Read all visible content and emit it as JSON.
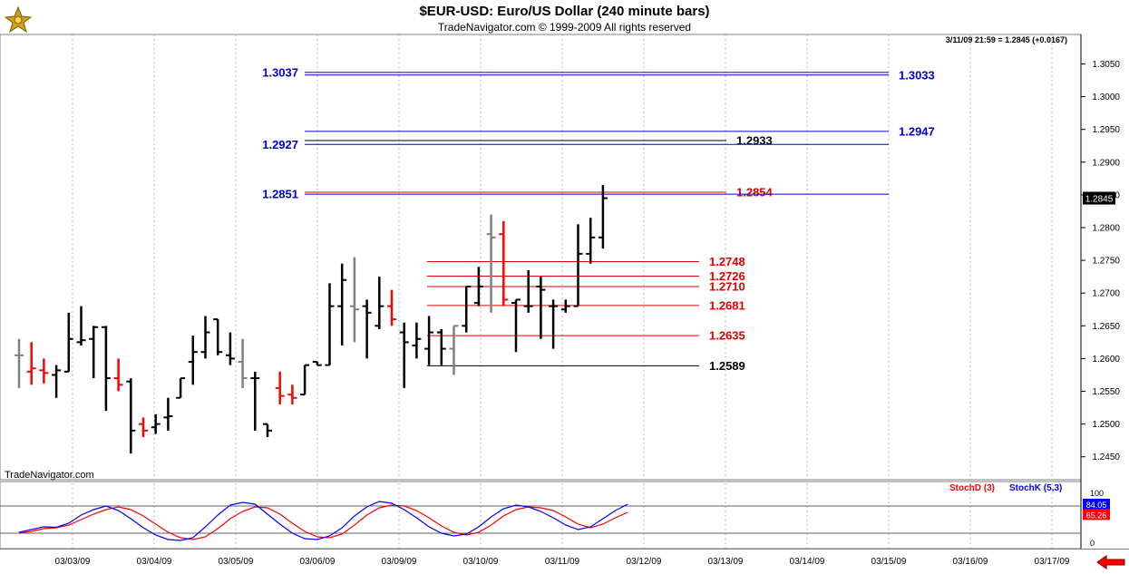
{
  "header": {
    "title": "$EUR-USD:  Euro/US Dollar  (240 minute bars)",
    "copyright": "TradeNavigator.com © 1999-2009 All rights reserved",
    "quote": "3/11/09 21:59 = 1.2845 (+0.0167)"
  },
  "watermark": "TradeNavigator.com",
  "colors": {
    "up_bar": "#000000",
    "down_bar": "#ff0000",
    "neutral_bar": "#808080",
    "stoch_d": "#ff0000",
    "stoch_k": "#0000ff",
    "fib_blue": "#0000cc",
    "support_red": "#e00000"
  },
  "chart_data": [
    {
      "type": "ohlc-bar",
      "title": "$EUR-USD:  Euro/US Dollar  (240 minute bars)",
      "ylim": [
        1.2415,
        1.3095
      ],
      "yticks": [
        1.245,
        1.25,
        1.255,
        1.26,
        1.265,
        1.27,
        1.275,
        1.28,
        1.285,
        1.29,
        1.295,
        1.3,
        1.305
      ],
      "ytick_labels": [
        "1.2450",
        "1.2500",
        "1.2550",
        "1.2600",
        "1.2650",
        "1.2700",
        "1.2750",
        "1.2800",
        "1.2850",
        "1.2900",
        "1.2950",
        "1.3000",
        "1.3050"
      ],
      "xlabels": [
        "03/03/09",
        "03/04/09",
        "03/05/09",
        "03/06/09",
        "03/09/09",
        "03/10/09",
        "03/11/09",
        "03/12/09",
        "03/13/09",
        "03/14/09",
        "03/15/09",
        "03/16/09",
        "03/17/09"
      ],
      "last_price_label": "1.2845",
      "bars": [
        {
          "o": 1.2605,
          "h": 1.263,
          "l": 1.2555,
          "c": 1.2605,
          "col": "gray"
        },
        {
          "o": 1.258,
          "h": 1.2625,
          "l": 1.256,
          "c": 1.2585,
          "col": "red"
        },
        {
          "o": 1.2582,
          "h": 1.26,
          "l": 1.2562,
          "c": 1.2578,
          "col": "red"
        },
        {
          "o": 1.2575,
          "h": 1.259,
          "l": 1.254,
          "c": 1.2582,
          "col": "black"
        },
        {
          "o": 1.258,
          "h": 1.267,
          "l": 1.258,
          "c": 1.263,
          "col": "black"
        },
        {
          "o": 1.2625,
          "h": 1.268,
          "l": 1.262,
          "c": 1.2628,
          "col": "black"
        },
        {
          "o": 1.263,
          "h": 1.265,
          "l": 1.257,
          "c": 1.2648,
          "col": "black"
        },
        {
          "o": 1.2648,
          "h": 1.265,
          "l": 1.252,
          "c": 1.257,
          "col": "black"
        },
        {
          "o": 1.257,
          "h": 1.26,
          "l": 1.255,
          "c": 1.256,
          "col": "red"
        },
        {
          "o": 1.2565,
          "h": 1.257,
          "l": 1.2455,
          "c": 1.249,
          "col": "black"
        },
        {
          "o": 1.25,
          "h": 1.251,
          "l": 1.248,
          "c": 1.249,
          "col": "red"
        },
        {
          "o": 1.2495,
          "h": 1.2515,
          "l": 1.2485,
          "c": 1.25,
          "col": "black"
        },
        {
          "o": 1.251,
          "h": 1.254,
          "l": 1.249,
          "c": 1.2512,
          "col": "black"
        },
        {
          "o": 1.254,
          "h": 1.257,
          "l": 1.254,
          "c": 1.257,
          "col": "black"
        },
        {
          "o": 1.2595,
          "h": 1.2635,
          "l": 1.256,
          "c": 1.261,
          "col": "black"
        },
        {
          "o": 1.261,
          "h": 1.2665,
          "l": 1.26,
          "c": 1.264,
          "col": "black"
        },
        {
          "o": 1.266,
          "h": 1.266,
          "l": 1.2605,
          "c": 1.261,
          "col": "black"
        },
        {
          "o": 1.2605,
          "h": 1.264,
          "l": 1.259,
          "c": 1.26,
          "col": "black"
        },
        {
          "o": 1.2595,
          "h": 1.263,
          "l": 1.2555,
          "c": 1.257,
          "col": "gray"
        },
        {
          "o": 1.257,
          "h": 1.258,
          "l": 1.249,
          "c": 1.257,
          "col": "black"
        },
        {
          "o": 1.25,
          "h": 1.25,
          "l": 1.248,
          "c": 1.249,
          "col": "black"
        },
        {
          "o": 1.2555,
          "h": 1.258,
          "l": 1.253,
          "c": 1.2543,
          "col": "red"
        },
        {
          "o": 1.2545,
          "h": 1.256,
          "l": 1.253,
          "c": 1.254,
          "col": "red"
        },
        {
          "o": 1.2545,
          "h": 1.259,
          "l": 1.2545,
          "c": 1.259,
          "col": "black"
        },
        {
          "o": 1.2595,
          "h": 1.2595,
          "l": 1.259,
          "c": 1.259,
          "col": "black"
        },
        {
          "o": 1.259,
          "h": 1.2715,
          "l": 1.259,
          "c": 1.268,
          "col": "black"
        },
        {
          "o": 1.268,
          "h": 1.2745,
          "l": 1.262,
          "c": 1.272,
          "col": "black"
        },
        {
          "o": 1.268,
          "h": 1.2755,
          "l": 1.2625,
          "c": 1.2675,
          "col": "gray"
        },
        {
          "o": 1.268,
          "h": 1.269,
          "l": 1.26,
          "c": 1.267,
          "col": "black"
        },
        {
          "o": 1.265,
          "h": 1.2725,
          "l": 1.2645,
          "c": 1.268,
          "col": "black"
        },
        {
          "o": 1.268,
          "h": 1.2705,
          "l": 1.265,
          "c": 1.266,
          "col": "red"
        },
        {
          "o": 1.264,
          "h": 1.2655,
          "l": 1.2555,
          "c": 1.2625,
          "col": "black"
        },
        {
          "o": 1.262,
          "h": 1.2655,
          "l": 1.26,
          "c": 1.263,
          "col": "black"
        },
        {
          "o": 1.2615,
          "h": 1.2665,
          "l": 1.259,
          "c": 1.264,
          "col": "black"
        },
        {
          "o": 1.264,
          "h": 1.2645,
          "l": 1.259,
          "c": 1.2615,
          "col": "black"
        },
        {
          "o": 1.2615,
          "h": 1.265,
          "l": 1.2575,
          "c": 1.265,
          "col": "gray"
        },
        {
          "o": 1.265,
          "h": 1.271,
          "l": 1.264,
          "c": 1.271,
          "col": "black"
        },
        {
          "o": 1.2685,
          "h": 1.274,
          "l": 1.268,
          "c": 1.271,
          "col": "black"
        },
        {
          "o": 1.279,
          "h": 1.282,
          "l": 1.267,
          "c": 1.2785,
          "col": "gray"
        },
        {
          "o": 1.279,
          "h": 1.281,
          "l": 1.268,
          "c": 1.269,
          "col": "red"
        },
        {
          "o": 1.2685,
          "h": 1.269,
          "l": 1.261,
          "c": 1.269,
          "col": "black"
        },
        {
          "o": 1.268,
          "h": 1.2735,
          "l": 1.267,
          "c": 1.268,
          "col": "black"
        },
        {
          "o": 1.271,
          "h": 1.2725,
          "l": 1.263,
          "c": 1.2705,
          "col": "black"
        },
        {
          "o": 1.268,
          "h": 1.269,
          "l": 1.2615,
          "c": 1.268,
          "col": "black"
        },
        {
          "o": 1.2675,
          "h": 1.269,
          "l": 1.267,
          "c": 1.268,
          "col": "black"
        },
        {
          "o": 1.268,
          "h": 1.2805,
          "l": 1.268,
          "c": 1.276,
          "col": "black"
        },
        {
          "o": 1.276,
          "h": 1.2815,
          "l": 1.2745,
          "c": 1.2785,
          "col": "black"
        },
        {
          "o": 1.2785,
          "h": 1.2865,
          "l": 1.2768,
          "c": 1.2845,
          "col": "black"
        }
      ],
      "levels": [
        {
          "value": 1.3037,
          "label": "1.3037",
          "side": "left",
          "color": "blue"
        },
        {
          "value": 1.3033,
          "label": "1.3033",
          "side": "right",
          "color": "blue"
        },
        {
          "value": 1.2947,
          "label": "1.2947",
          "side": "right",
          "color": "blue"
        },
        {
          "value": 1.2933,
          "label": "1.2933",
          "side": "right",
          "color": "black"
        },
        {
          "value": 1.2927,
          "label": "1.2927",
          "side": "left",
          "color": "blue"
        },
        {
          "value": 1.2854,
          "label": "1.2854",
          "side": "right",
          "color": "red"
        },
        {
          "value": 1.2851,
          "label": "1.2851",
          "side": "left",
          "color": "blue"
        },
        {
          "value": 1.2748,
          "label": "1.2748",
          "side": "right",
          "color": "red"
        },
        {
          "value": 1.2726,
          "label": "1.2726",
          "side": "right",
          "color": "red"
        },
        {
          "value": 1.271,
          "label": "1.2710",
          "side": "right",
          "color": "red"
        },
        {
          "value": 1.2681,
          "label": "1.2681",
          "side": "right",
          "color": "red"
        },
        {
          "value": 1.2635,
          "label": "1.2635",
          "side": "right",
          "color": "red"
        },
        {
          "value": 1.2589,
          "label": "1.2589",
          "side": "right",
          "color": "black"
        }
      ]
    },
    {
      "type": "line",
      "ylim": [
        0,
        100
      ],
      "yticks": [
        0,
        100
      ],
      "ytick_labels": [
        "0",
        "100"
      ],
      "reference_lines": [
        80,
        20
      ],
      "last_values": {
        "k": "84.05",
        "d": "65.26"
      },
      "series": [
        {
          "name": "StochD (3)",
          "values": [
            20,
            24,
            30,
            32,
            38,
            50,
            62,
            72,
            78,
            72,
            58,
            40,
            22,
            10,
            6,
            12,
            30,
            52,
            68,
            78,
            76,
            62,
            42,
            24,
            12,
            10,
            18,
            38,
            60,
            76,
            82,
            80,
            70,
            54,
            36,
            22,
            16,
            22,
            38,
            58,
            72,
            78,
            76,
            70,
            56,
            40,
            32,
            40,
            54,
            66
          ]
        },
        {
          "name": "StochK (5,3)",
          "values": [
            22,
            28,
            34,
            33,
            42,
            60,
            72,
            80,
            70,
            52,
            32,
            16,
            6,
            4,
            10,
            34,
            60,
            82,
            88,
            84,
            62,
            40,
            20,
            8,
            6,
            14,
            32,
            58,
            78,
            90,
            86,
            72,
            54,
            34,
            20,
            14,
            18,
            34,
            56,
            74,
            82,
            78,
            68,
            54,
            38,
            28,
            34,
            52,
            70,
            84
          ]
        }
      ]
    }
  ]
}
